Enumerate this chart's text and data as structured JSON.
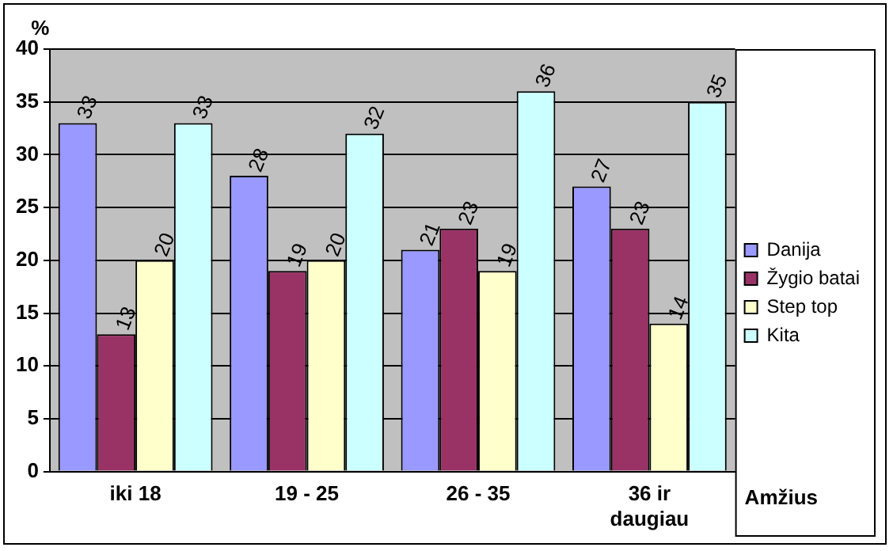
{
  "chart_data": {
    "type": "bar",
    "xlabel": "Amžius",
    "ylabel": "%",
    "categories": [
      "iki 18",
      "19 - 25",
      "26 - 35",
      "36 ir daugiau"
    ],
    "series": [
      {
        "name": "Danija",
        "color": "#9999ff",
        "values": [
          33,
          28,
          21,
          27
        ]
      },
      {
        "name": "Žygio batai",
        "color": "#993366",
        "values": [
          13,
          19,
          23,
          23
        ]
      },
      {
        "name": "Step top",
        "color": "#ffffcc",
        "values": [
          20,
          20,
          19,
          14
        ]
      },
      {
        "name": "Kita",
        "color": "#ccffff",
        "values": [
          33,
          32,
          36,
          35
        ]
      }
    ],
    "ylim": [
      0,
      40
    ],
    "yticks": [
      0,
      5,
      10,
      15,
      20,
      25,
      30,
      35,
      40
    ],
    "grid": "y",
    "legend": "right",
    "data_labels": true
  }
}
